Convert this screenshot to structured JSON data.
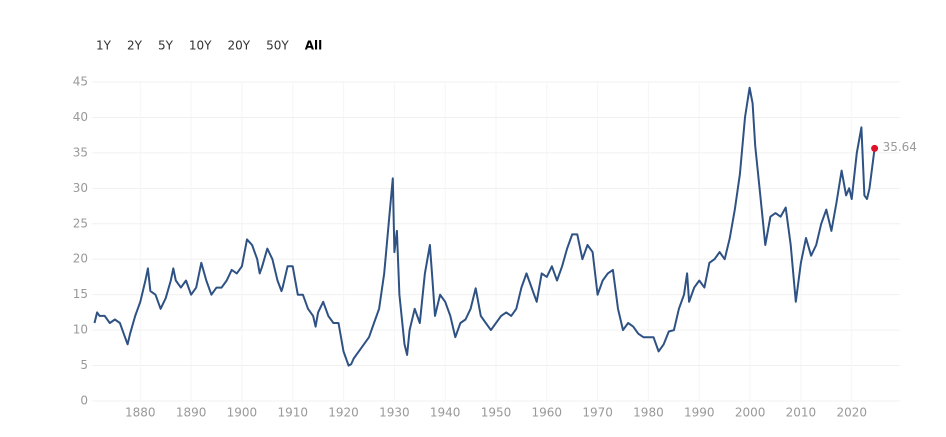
{
  "range_buttons": [
    "1Y",
    "2Y",
    "5Y",
    "10Y",
    "20Y",
    "50Y",
    "All"
  ],
  "active_button": "All",
  "chart_data": {
    "type": "line",
    "xlim": [
      1870.5,
      2029.5
    ],
    "ylim": [
      0,
      45
    ],
    "xticks": [
      1880,
      1890,
      1900,
      1910,
      1920,
      1930,
      1940,
      1950,
      1960,
      1970,
      1980,
      1990,
      2000,
      2010,
      2020
    ],
    "yticks": [
      0,
      5,
      10,
      15,
      20,
      25,
      30,
      35,
      40,
      45
    ],
    "grid": true,
    "series": [
      {
        "color": "#2f5284",
        "marker_color": "#e0102a",
        "x": [
          1871,
          1871.5,
          1872,
          1873,
          1874,
          1875,
          1876,
          1877,
          1877.5,
          1878,
          1879,
          1880,
          1881,
          1881.5,
          1882,
          1883,
          1884,
          1885,
          1886,
          1886.5,
          1887,
          1888,
          1889,
          1890,
          1891,
          1892,
          1893,
          1894,
          1895,
          1896,
          1897,
          1898,
          1899,
          1900,
          1901,
          1902,
          1903,
          1903.5,
          1904,
          1905,
          1906,
          1907,
          1907.8,
          1908,
          1909,
          1910,
          1911,
          1912,
          1913,
          1914,
          1914.5,
          1915,
          1916,
          1917,
          1918,
          1919,
          1920,
          1921,
          1921.5,
          1922,
          1923,
          1924,
          1925,
          1926,
          1927,
          1928,
          1929,
          1929.7,
          1930,
          1930.5,
          1931,
          1932,
          1932.5,
          1933,
          1934,
          1935,
          1936,
          1937,
          1937.5,
          1938,
          1939,
          1940,
          1941,
          1942,
          1943,
          1944,
          1945,
          1946,
          1947,
          1948,
          1949,
          1950,
          1951,
          1952,
          1953,
          1954,
          1955,
          1956,
          1957,
          1958,
          1959,
          1960,
          1961,
          1962,
          1963,
          1964,
          1965,
          1966,
          1967,
          1968,
          1969,
          1970,
          1971,
          1972,
          1973,
          1974,
          1975,
          1976,
          1977,
          1978,
          1979,
          1980,
          1981,
          1982,
          1983,
          1984,
          1985,
          1986,
          1987,
          1987.6,
          1988,
          1989,
          1990,
          1991,
          1992,
          1993,
          1994,
          1995,
          1996,
          1997,
          1998,
          1999,
          1999.9,
          2000.5,
          2001,
          2002,
          2003,
          2004,
          2005,
          2006,
          2007,
          2008,
          2009,
          2010,
          2011,
          2012,
          2013,
          2014,
          2015,
          2016,
          2017,
          2018,
          2018.9,
          2019.5,
          2020,
          2021,
          2021.9,
          2022.5,
          2023,
          2023.5,
          2024.5
        ],
        "values": [
          11,
          12.5,
          12,
          12,
          11,
          11.5,
          11,
          9,
          8,
          9.5,
          12,
          14,
          17,
          18.7,
          15.5,
          15,
          13,
          14.5,
          17,
          18.7,
          17,
          16,
          17,
          15,
          16,
          19.5,
          17,
          15,
          16,
          16,
          17,
          18.5,
          18,
          19,
          22.8,
          22,
          20,
          18,
          19,
          21.5,
          20,
          17,
          15.5,
          16,
          19,
          19,
          15,
          15,
          13,
          12,
          10.5,
          12.5,
          14,
          12,
          11,
          11,
          7,
          5,
          5.2,
          6,
          7,
          8,
          9,
          11,
          13,
          18,
          26,
          31.4,
          21,
          24,
          15,
          8,
          6.5,
          10,
          13,
          11,
          18,
          22,
          17,
          12,
          15,
          14,
          12,
          9,
          11,
          11.5,
          13,
          15.9,
          12,
          11,
          10,
          11,
          12,
          12.5,
          12,
          13,
          16,
          18,
          16,
          14,
          18,
          17.5,
          19,
          17,
          19,
          21.5,
          23.5,
          23.5,
          20,
          22,
          21,
          15,
          17,
          18,
          18.5,
          13,
          10,
          11,
          10.5,
          9.5,
          9,
          9,
          9,
          7,
          8,
          9.8,
          10,
          13,
          15,
          18,
          14,
          16,
          17,
          16,
          19.5,
          20,
          21,
          20,
          23,
          27,
          32,
          40,
          44.2,
          42,
          36,
          29,
          22,
          26,
          26.5,
          26,
          27.3,
          22,
          14,
          19.5,
          23,
          20.5,
          22,
          25,
          27,
          24,
          28,
          32.5,
          29,
          30,
          28.5,
          35,
          38.6,
          29,
          28.5,
          30,
          35.64
        ]
      }
    ]
  }
}
